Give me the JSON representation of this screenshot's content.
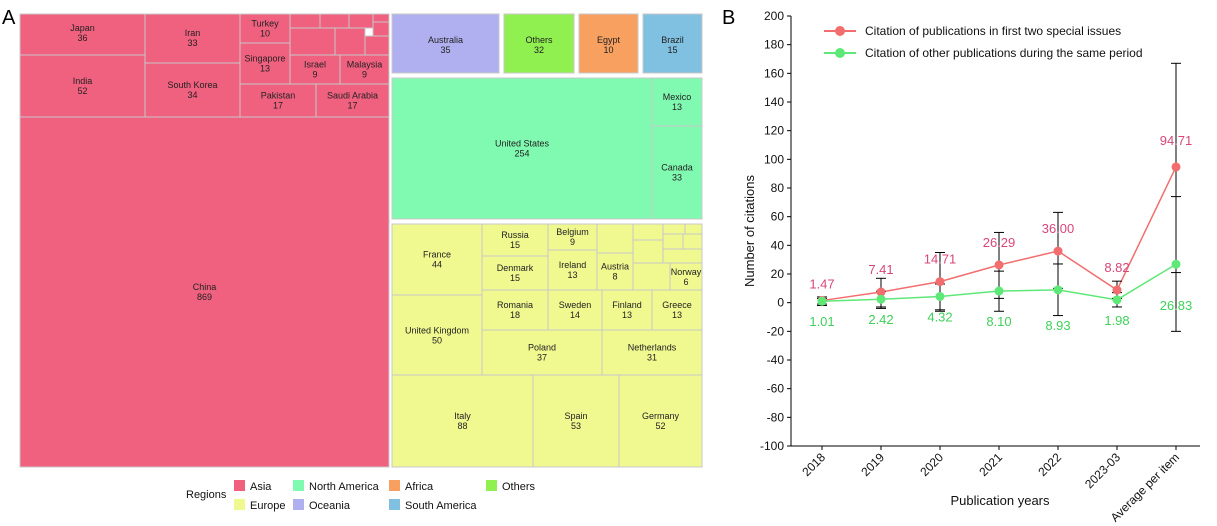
{
  "panels": {
    "a": "A",
    "b": "B"
  },
  "colors": {
    "Asia": "#f0607f",
    "North America": "#80fab0",
    "Africa": "#f8a060",
    "Others": "#90f050",
    "Europe": "#f0f890",
    "Oceania": "#b0b0f0",
    "South America": "#80c0e0",
    "series1": "#f26d6d",
    "series2": "#5ee877",
    "label1": "#d9467a",
    "label2": "#3fd15a"
  },
  "chart_data": [
    {
      "type": "treemap",
      "legend_title": "Regions",
      "legend": [
        "Asia",
        "North America",
        "Africa",
        "Others",
        "Europe",
        "Oceania",
        "South America"
      ],
      "items": [
        {
          "name": "China",
          "value": 869,
          "region": "Asia"
        },
        {
          "name": "India",
          "value": 52,
          "region": "Asia"
        },
        {
          "name": "Japan",
          "value": 36,
          "region": "Asia"
        },
        {
          "name": "South Korea",
          "value": 34,
          "region": "Asia"
        },
        {
          "name": "Iran",
          "value": 33,
          "region": "Asia"
        },
        {
          "name": "Pakistan",
          "value": 17,
          "region": "Asia"
        },
        {
          "name": "Saudi Arabia",
          "value": 17,
          "region": "Asia"
        },
        {
          "name": "Singapore",
          "value": 13,
          "region": "Asia"
        },
        {
          "name": "Turkey",
          "value": 10,
          "region": "Asia"
        },
        {
          "name": "Israel",
          "value": 9,
          "region": "Asia"
        },
        {
          "name": "Malaysia",
          "value": 9,
          "region": "Asia"
        },
        {
          "name": "Australia",
          "value": 35,
          "region": "Oceania"
        },
        {
          "name": "Others",
          "value": 32,
          "region": "Others"
        },
        {
          "name": "Egypt",
          "value": 10,
          "region": "Africa"
        },
        {
          "name": "Brazil",
          "value": 15,
          "region": "South America"
        },
        {
          "name": "United States",
          "value": 254,
          "region": "North America"
        },
        {
          "name": "Mexico",
          "value": 13,
          "region": "North America"
        },
        {
          "name": "Canada",
          "value": 33,
          "region": "North America"
        },
        {
          "name": "France",
          "value": 44,
          "region": "Europe"
        },
        {
          "name": "United Kingdom",
          "value": 50,
          "region": "Europe"
        },
        {
          "name": "Russia",
          "value": 15,
          "region": "Europe"
        },
        {
          "name": "Belgium",
          "value": 9,
          "region": "Europe"
        },
        {
          "name": "Denmark",
          "value": 15,
          "region": "Europe"
        },
        {
          "name": "Ireland",
          "value": 13,
          "region": "Europe"
        },
        {
          "name": "Austria",
          "value": 8,
          "region": "Europe"
        },
        {
          "name": "Norway",
          "value": 6,
          "region": "Europe"
        },
        {
          "name": "Romania",
          "value": 18,
          "region": "Europe"
        },
        {
          "name": "Sweden",
          "value": 14,
          "region": "Europe"
        },
        {
          "name": "Finland",
          "value": 13,
          "region": "Europe"
        },
        {
          "name": "Greece",
          "value": 13,
          "region": "Europe"
        },
        {
          "name": "Poland",
          "value": 37,
          "region": "Europe"
        },
        {
          "name": "Netherlands",
          "value": 31,
          "region": "Europe"
        },
        {
          "name": "Italy",
          "value": 88,
          "region": "Europe"
        },
        {
          "name": "Spain",
          "value": 53,
          "region": "Europe"
        },
        {
          "name": "Germany",
          "value": 52,
          "region": "Europe"
        }
      ]
    },
    {
      "type": "line",
      "categories": [
        "2018",
        "2019",
        "2020",
        "2021",
        "2022",
        "2023-03",
        "Average per item"
      ],
      "xlabel": "Publication years",
      "ylabel": "Number of citations",
      "ylim": [
        -100,
        200
      ],
      "yticks": [
        -100,
        -80,
        -60,
        -40,
        -20,
        0,
        20,
        40,
        60,
        80,
        100,
        120,
        140,
        160,
        180,
        200
      ],
      "legend_position": "top-left",
      "series": [
        {
          "name": "Citation of publications in first two special issues",
          "values": [
            1.47,
            7.41,
            14.71,
            26.29,
            36.0,
            8.82,
            94.71
          ],
          "labels": [
            "1.47",
            "7.41",
            "14.71",
            "26.29",
            "36.00",
            "8.82",
            "94.71"
          ],
          "err_low": [
            -2,
            -4,
            -5,
            3,
            10,
            3,
            21
          ],
          "err_high": [
            4,
            17,
            35,
            49,
            63,
            15,
            167
          ]
        },
        {
          "name": "Citation of other publications during the same period",
          "values": [
            1.01,
            2.42,
            4.32,
            8.1,
            8.93,
            1.98,
            26.83
          ],
          "labels": [
            "1.01",
            "2.42",
            "4.32",
            "8.10",
            "8.93",
            "1.98",
            "26.83"
          ],
          "err_low": [
            -1,
            -3,
            -6,
            -6,
            -9,
            -3,
            -20
          ],
          "err_high": [
            3,
            8,
            13,
            22,
            27,
            7,
            74
          ]
        }
      ]
    }
  ]
}
